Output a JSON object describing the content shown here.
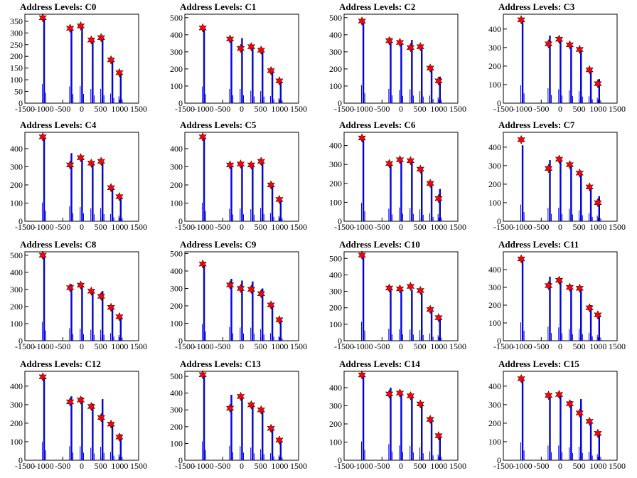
{
  "chart_data": {
    "type": "bar",
    "layout": {
      "rows": 4,
      "cols": 4
    },
    "colors": {
      "bar": "#0000ff",
      "outline": "#000000",
      "marker": "#ff0000"
    },
    "marker": "red-star-peak",
    "xlim": [
      -1500,
      1500
    ],
    "xticks": [
      -1500,
      -1000,
      -500,
      0,
      500,
      1000,
      1500
    ],
    "xtick_labels": [
      "-1500",
      "-1000",
      "-500",
      "0",
      "500",
      "1000",
      "1500"
    ],
    "peak_x": [
      -1000,
      -280,
      0,
      280,
      540,
      800,
      1020
    ],
    "panels": [
      {
        "title": "Address Levels: C0",
        "ylim": [
          0,
          380
        ],
        "yticks": [
          0,
          50,
          100,
          150,
          200,
          250,
          300,
          350
        ],
        "bars": [
          370,
          325,
          330,
          275,
          280,
          185,
          130
        ],
        "peaks": [
          365,
          320,
          330,
          270,
          280,
          185,
          130
        ]
      },
      {
        "title": "Address Levels: C1",
        "ylim": [
          0,
          520
        ],
        "yticks": [
          0,
          100,
          200,
          300,
          400,
          500
        ],
        "bars": [
          440,
          380,
          380,
          330,
          320,
          190,
          130
        ],
        "peaks": [
          440,
          375,
          320,
          330,
          310,
          190,
          130
        ]
      },
      {
        "title": "Address Levels: C2",
        "ylim": [
          0,
          520
        ],
        "yticks": [
          0,
          100,
          200,
          300,
          400,
          500
        ],
        "bars": [
          480,
          380,
          350,
          370,
          320,
          200,
          155
        ],
        "peaks": [
          480,
          365,
          355,
          325,
          330,
          205,
          130
        ]
      },
      {
        "title": "Address Levels: C3",
        "ylim": [
          0,
          480
        ],
        "yticks": [
          0,
          100,
          200,
          300,
          400
        ],
        "bars": [
          440,
          365,
          340,
          315,
          295,
          170,
          130
        ],
        "peaks": [
          450,
          320,
          345,
          315,
          290,
          180,
          105
        ]
      },
      {
        "title": "Address Levels: C4",
        "ylim": [
          0,
          490
        ],
        "yticks": [
          0,
          100,
          200,
          300,
          400
        ],
        "bars": [
          470,
          375,
          355,
          320,
          330,
          180,
          140
        ],
        "peaks": [
          465,
          310,
          350,
          320,
          330,
          185,
          135
        ]
      },
      {
        "title": "Address Levels: C5",
        "ylim": [
          0,
          490
        ],
        "yticks": [
          0,
          100,
          200,
          300,
          400
        ],
        "bars": [
          465,
          310,
          320,
          300,
          335,
          205,
          130
        ],
        "peaks": [
          465,
          310,
          315,
          310,
          330,
          200,
          120
        ]
      },
      {
        "title": "Address Levels: C6",
        "ylim": [
          0,
          470
        ],
        "yticks": [
          0,
          100,
          200,
          300,
          400
        ],
        "bars": [
          440,
          300,
          330,
          320,
          285,
          190,
          170
        ],
        "peaks": [
          440,
          305,
          325,
          320,
          275,
          200,
          120
        ]
      },
      {
        "title": "Address Levels: C7",
        "ylim": [
          0,
          480
        ],
        "yticks": [
          0,
          100,
          200,
          300,
          400
        ],
        "bars": [
          410,
          330,
          330,
          305,
          270,
          195,
          135
        ],
        "peaks": [
          440,
          285,
          335,
          305,
          260,
          185,
          100
        ]
      },
      {
        "title": "Address Levels: C8",
        "ylim": [
          0,
          520
        ],
        "yticks": [
          0,
          100,
          200,
          300,
          400,
          500
        ],
        "bars": [
          500,
          330,
          320,
          290,
          290,
          200,
          150
        ],
        "peaks": [
          500,
          310,
          325,
          290,
          260,
          195,
          140
        ]
      },
      {
        "title": "Address Levels: C9",
        "ylim": [
          0,
          510
        ],
        "yticks": [
          0,
          100,
          200,
          300,
          400,
          500
        ],
        "bars": [
          440,
          355,
          345,
          340,
          300,
          195,
          110
        ],
        "peaks": [
          440,
          320,
          300,
          295,
          270,
          205,
          120
        ]
      },
      {
        "title": "Address Levels: C10",
        "ylim": [
          0,
          540
        ],
        "yticks": [
          0,
          100,
          200,
          300,
          400,
          500
        ],
        "bars": [
          520,
          330,
          320,
          310,
          290,
          200,
          150
        ],
        "peaks": [
          520,
          320,
          315,
          330,
          305,
          190,
          140
        ]
      },
      {
        "title": "Address Levels: C11",
        "ylim": [
          0,
          500
        ],
        "yticks": [
          0,
          100,
          200,
          300,
          400
        ],
        "bars": [
          470,
          360,
          340,
          300,
          305,
          200,
          150
        ],
        "peaks": [
          460,
          310,
          340,
          300,
          295,
          185,
          145
        ]
      },
      {
        "title": "Address Levels: C12",
        "ylim": [
          0,
          480
        ],
        "yticks": [
          0,
          100,
          200,
          300,
          400
        ],
        "bars": [
          450,
          345,
          340,
          305,
          330,
          205,
          140
        ],
        "peaks": [
          450,
          315,
          325,
          290,
          230,
          195,
          125
        ]
      },
      {
        "title": "Address Levels: C13",
        "ylim": [
          0,
          530
        ],
        "yticks": [
          0,
          100,
          200,
          300,
          400,
          500
        ],
        "bars": [
          510,
          390,
          380,
          340,
          300,
          190,
          130
        ],
        "peaks": [
          510,
          310,
          380,
          330,
          300,
          190,
          120
        ]
      },
      {
        "title": "Address Levels: C14",
        "ylim": [
          0,
          490
        ],
        "yticks": [
          0,
          100,
          200,
          300,
          400
        ],
        "bars": [
          470,
          400,
          370,
          360,
          320,
          220,
          140
        ],
        "peaks": [
          470,
          365,
          370,
          355,
          310,
          225,
          135
        ]
      },
      {
        "title": "Address Levels: C15",
        "ylim": [
          0,
          480
        ],
        "yticks": [
          0,
          100,
          200,
          300,
          400
        ],
        "bars": [
          440,
          360,
          360,
          320,
          330,
          210,
          150
        ],
        "peaks": [
          440,
          350,
          355,
          305,
          255,
          210,
          145
        ]
      }
    ]
  }
}
